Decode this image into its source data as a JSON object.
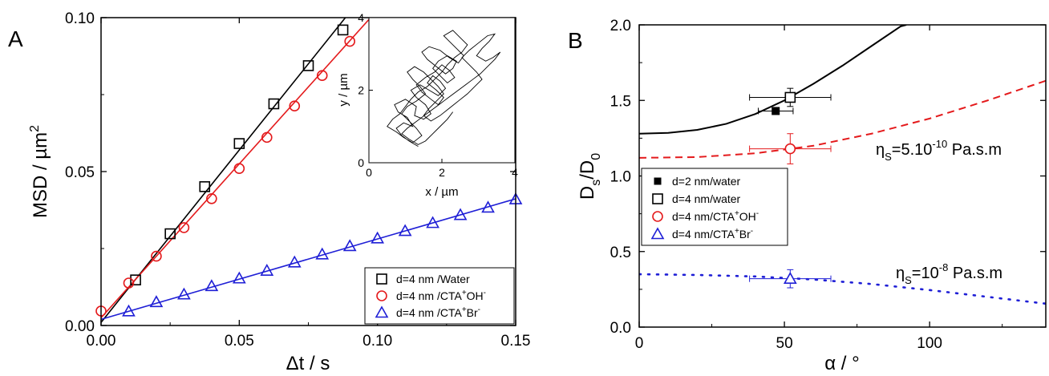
{
  "figure": {
    "panel_a_letter": "A",
    "panel_b_letter": "B"
  },
  "chart_data": [
    {
      "panel": "A",
      "type": "scatter",
      "xlabel": "Δt / s",
      "ylabel_main": "MSD / µm",
      "ylabel_sup": "2",
      "xlim": [
        0,
        0.15
      ],
      "ylim": [
        0,
        0.1
      ],
      "xticks": [
        0,
        0.05,
        0.1,
        0.15
      ],
      "xtick_labels": [
        "0.00",
        "0.05",
        "0.10",
        "0.15"
      ],
      "yticks": [
        0,
        0.05,
        0.1
      ],
      "ytick_labels": [
        "0.00",
        "0.05",
        "0.10"
      ],
      "grid": false,
      "legend_position": "bottom-right",
      "series": [
        {
          "legend_main": "d=4 nm /Water",
          "legend_sup": "",
          "marker": "square",
          "color": "#000000",
          "x": [
            0.0125,
            0.025,
            0.0375,
            0.05,
            0.0625,
            0.075,
            0.0875
          ],
          "y": [
            0.0148,
            0.0298,
            0.0451,
            0.0591,
            0.072,
            0.0844,
            0.096
          ],
          "fit": {
            "slope": 1.12,
            "intercept": 0.001
          }
        },
        {
          "legend_main": "d=4 nm /CTA",
          "legend_sup": "+",
          "legend_mid": "OH",
          "legend_sup2": "-",
          "marker": "circle",
          "color": "#e41a1c",
          "x": [
            0,
            0.01,
            0.02,
            0.03,
            0.04,
            0.05,
            0.06,
            0.07,
            0.08,
            0.09
          ],
          "y": [
            0.0047,
            0.0138,
            0.0225,
            0.0318,
            0.0412,
            0.051,
            0.0611,
            0.0713,
            0.0812,
            0.0923
          ],
          "fit": {
            "slope": 1.0,
            "intercept": 0.0025
          }
        },
        {
          "legend_main": "d=4 nm /CTA",
          "legend_sup": "+",
          "legend_mid": "Br",
          "legend_sup2": "-",
          "marker": "triangle",
          "color": "#1f1fd6",
          "x": [
            0.01,
            0.02,
            0.03,
            0.04,
            0.05,
            0.06,
            0.07,
            0.08,
            0.09,
            0.1,
            0.11,
            0.12,
            0.13,
            0.14,
            0.15
          ],
          "y": [
            0.0046,
            0.0076,
            0.0101,
            0.0128,
            0.0153,
            0.0178,
            0.0205,
            0.0231,
            0.0258,
            0.0283,
            0.0307,
            0.0333,
            0.0359,
            0.0383,
            0.041
          ],
          "fit": {
            "slope": 0.261,
            "intercept": 0.002
          }
        }
      ],
      "inset": {
        "type": "line",
        "xlabel": "x / µm",
        "ylabel": "y / µm",
        "xlim": [
          0,
          4
        ],
        "ylim": [
          0,
          4
        ],
        "xticks": [
          0,
          2,
          4
        ],
        "yticks": [
          0,
          2,
          4
        ],
        "trajectory_x": [
          1.35,
          1.1,
          0.9,
          0.75,
          0.95,
          1.2,
          1.05,
          0.8,
          0.7,
          1.0,
          1.3,
          1.25,
          1.5,
          1.7,
          1.55,
          1.3,
          1.15,
          1.4,
          1.65,
          1.9,
          2.1,
          1.95,
          1.75,
          1.6,
          1.85,
          2.05,
          1.9,
          1.7,
          1.45,
          1.3,
          1.55,
          1.8,
          2.0,
          2.2,
          2.35,
          2.15,
          1.95,
          1.75,
          1.9,
          2.15,
          2.4,
          2.3,
          2.1,
          1.85,
          1.6,
          1.45,
          1.65,
          1.95,
          2.2,
          2.45,
          2.6,
          2.4,
          2.2,
          2.05,
          2.3,
          2.5,
          2.7,
          2.55,
          2.35,
          2.15,
          2.0,
          1.8,
          1.6,
          1.35,
          1.15,
          1.0,
          0.85,
          0.65,
          0.5,
          0.75,
          0.95,
          1.2,
          1.45,
          1.3,
          1.1,
          0.9,
          1.05,
          1.3,
          1.55,
          1.4,
          1.2,
          1.05,
          1.25,
          1.5,
          1.7,
          1.9,
          2.05,
          1.85,
          1.65,
          1.5,
          1.7,
          1.95,
          2.2,
          2.45,
          2.7,
          2.9,
          3.1,
          2.95,
          2.75,
          2.55,
          2.75,
          3.0,
          3.25,
          3.45,
          3.3,
          3.1,
          2.95,
          3.2,
          3.4,
          3.6,
          3.45,
          3.25,
          3.05,
          2.85,
          2.65,
          2.45,
          2.25,
          2.05,
          1.85,
          1.65,
          1.45,
          1.25,
          1.05,
          0.9,
          1.1,
          1.35,
          1.55,
          1.75,
          1.95,
          2.15,
          2.3
        ],
        "trajectory_y": [
          0.45,
          0.6,
          0.75,
          0.95,
          1.1,
          1.0,
          1.25,
          1.4,
          1.6,
          1.75,
          1.55,
          1.3,
          1.2,
          1.35,
          1.6,
          1.8,
          2.0,
          2.15,
          2.0,
          1.85,
          2.05,
          2.25,
          2.4,
          2.2,
          2.0,
          1.8,
          1.6,
          1.75,
          1.95,
          2.15,
          2.35,
          2.5,
          2.7,
          2.55,
          2.35,
          2.2,
          2.4,
          2.6,
          2.8,
          2.95,
          2.8,
          2.6,
          2.45,
          2.65,
          2.85,
          3.05,
          3.2,
          3.1,
          2.9,
          2.75,
          2.95,
          3.15,
          3.35,
          3.5,
          3.65,
          3.45,
          3.25,
          3.05,
          2.9,
          2.7,
          2.5,
          2.3,
          2.1,
          1.95,
          1.75,
          1.55,
          1.35,
          1.2,
          1.0,
          0.85,
          0.7,
          0.55,
          0.75,
          0.95,
          1.15,
          1.35,
          1.55,
          1.7,
          1.9,
          2.1,
          2.3,
          2.5,
          2.65,
          2.5,
          2.3,
          2.1,
          1.9,
          1.7,
          1.5,
          1.3,
          1.15,
          1.3,
          1.5,
          1.7,
          1.9,
          2.1,
          2.3,
          2.5,
          2.7,
          2.9,
          3.1,
          3.3,
          3.5,
          3.55,
          3.35,
          3.15,
          2.95,
          2.8,
          2.9,
          3.05,
          2.85,
          2.65,
          2.45,
          2.3,
          2.15,
          2.0,
          1.85,
          1.7,
          1.55,
          1.4,
          1.25,
          1.1,
          0.95,
          0.8,
          0.65,
          0.5,
          0.6,
          0.8,
          1.0,
          1.2,
          1.4
        ]
      }
    },
    {
      "panel": "B",
      "type": "scatter",
      "xlabel": "α / °",
      "ylabel_main": "D",
      "ylabel_sub1": "s",
      "ylabel_mid": "/D",
      "ylabel_sub2": "0",
      "xlim": [
        0,
        140
      ],
      "ylim": [
        0,
        2.0
      ],
      "xticks": [
        0,
        50,
        100
      ],
      "xtick_labels": [
        "0",
        "50",
        "100"
      ],
      "yticks": [
        0,
        0.5,
        1.0,
        1.5,
        2.0
      ],
      "ytick_labels": [
        "0.0",
        "0.5",
        "1.0",
        "1.5",
        "2.0"
      ],
      "grid": false,
      "legend_position": "middle-left",
      "series": [
        {
          "legend_main": "d=2 nm/water",
          "legend_sup": "",
          "legend_mid": "",
          "legend_sup2": "",
          "marker": "filled-square",
          "color": "#000000",
          "x": [
            47
          ],
          "y": [
            1.43
          ],
          "xerr": [
            6
          ],
          "yerr": [
            0.02
          ]
        },
        {
          "legend_main": "d=4 nm/water",
          "legend_sup": "",
          "legend_mid": "",
          "legend_sup2": "",
          "marker": "square",
          "color": "#000000",
          "x": [
            52
          ],
          "y": [
            1.52
          ],
          "xerr": [
            14
          ],
          "yerr": [
            0.06
          ]
        },
        {
          "legend_main": "d=4 nm/CTA",
          "legend_sup": "+",
          "legend_mid": "OH",
          "legend_sup2": "-",
          "marker": "circle",
          "color": "#e41a1c",
          "x": [
            52
          ],
          "y": [
            1.18
          ],
          "xerr": [
            14
          ],
          "yerr": [
            0.1
          ]
        },
        {
          "legend_main": "d=4 nm/CTA",
          "legend_sup": "+",
          "legend_mid": "Br",
          "legend_sup2": "-",
          "marker": "triangle",
          "color": "#1f1fd6",
          "x": [
            52
          ],
          "y": [
            0.32
          ],
          "xerr": [
            14
          ],
          "yerr": [
            0.06
          ]
        }
      ],
      "curves": [
        {
          "style": "solid",
          "color": "#000000",
          "x": [
            0,
            10,
            20,
            30,
            40,
            50,
            60,
            70,
            80,
            90,
            92
          ],
          "y": [
            1.28,
            1.285,
            1.305,
            1.345,
            1.41,
            1.5,
            1.61,
            1.73,
            1.86,
            1.99,
            2.0
          ]
        },
        {
          "style": "dashed",
          "color": "#e41a1c",
          "x": [
            0,
            20,
            40,
            60,
            80,
            100,
            120,
            140
          ],
          "y": [
            1.12,
            1.125,
            1.15,
            1.2,
            1.28,
            1.38,
            1.5,
            1.63
          ]
        },
        {
          "style": "dotted",
          "color": "#1f1fd6",
          "x": [
            0,
            20,
            40,
            60,
            80,
            100,
            120,
            140
          ],
          "y": [
            0.35,
            0.345,
            0.335,
            0.315,
            0.285,
            0.245,
            0.2,
            0.155
          ]
        }
      ],
      "annotations": [
        {
          "main": "η",
          "sub": "S",
          "mid": "=5.10",
          "sup": "-10",
          "tail": " Pa.s.m"
        },
        {
          "main": "η",
          "sub": "S",
          "mid": "=10",
          "sup": "-8",
          "tail": " Pa.s.m"
        }
      ]
    }
  ]
}
